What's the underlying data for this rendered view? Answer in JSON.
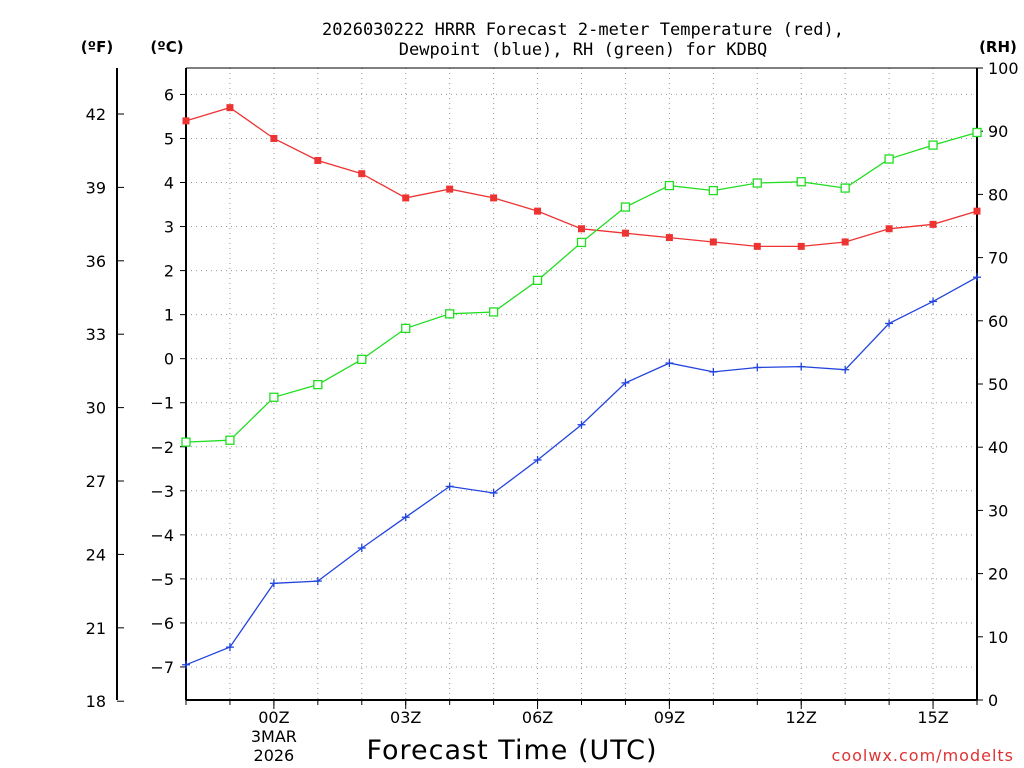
{
  "chart_data": {
    "type": "line",
    "title_line1": "2026030222 HRRR Forecast 2-meter Temperature (red),",
    "title_line2": "Dewpoint (blue), RH (green) for KDBQ",
    "xlabel": "Forecast Time (UTC)",
    "watermark": "coolwx.com/modelts",
    "units": {
      "fahrenheit": "(ºF)",
      "celsius": "(ºC)",
      "rh": "(RH)"
    },
    "x": [
      -1.0,
      -0.5,
      0.0,
      0.5,
      1.0,
      1.5,
      2.0,
      2.5,
      3.0,
      3.5,
      4.0,
      4.5,
      5.0,
      5.5,
      6.0,
      6.5,
      7.0,
      7.5,
      8.0,
      8.5,
      9.0,
      9.5,
      10.0,
      10.5,
      11.0,
      11.5,
      12.0,
      12.5,
      13.0,
      13.5,
      14.0,
      14.5,
      15.0,
      15.5,
      16.0
    ],
    "x_tick_labels": [
      {
        "x": 0,
        "label": "00Z",
        "sub1": "3MAR",
        "sub2": "2026"
      },
      {
        "x": 3,
        "label": "03Z"
      },
      {
        "x": 6,
        "label": "06Z"
      },
      {
        "x": 9,
        "label": "09Z"
      },
      {
        "x": 12,
        "label": "12Z"
      },
      {
        "x": 15,
        "label": "15Z"
      }
    ],
    "xlim": [
      -2.0,
      16.0
    ],
    "c_lim": [
      -7.75,
      6.6
    ],
    "c_ticks": [
      -7,
      -6,
      -5,
      -4,
      -3,
      -2,
      -1,
      0,
      1,
      2,
      3,
      4,
      5,
      6
    ],
    "f_ticks": [
      18,
      21,
      24,
      27,
      30,
      33,
      36,
      39,
      42
    ],
    "rh_lim": [
      0,
      100
    ],
    "rh_ticks": [
      0,
      10,
      20,
      30,
      40,
      50,
      60,
      70,
      80,
      90,
      100
    ],
    "series": [
      {
        "name": "Temperature",
        "unit": "C",
        "color": "#ee3333",
        "marker": "filled-square",
        "x": [
          -2,
          -1,
          0,
          1,
          2,
          3,
          4,
          5,
          6,
          7,
          8,
          9,
          10,
          11,
          12,
          13,
          14,
          15,
          16
        ],
        "values": [
          5.4,
          5.7,
          5.0,
          4.5,
          4.2,
          3.65,
          3.85,
          3.65,
          3.35,
          2.95,
          2.85,
          2.75,
          2.65,
          2.55,
          2.55,
          2.65,
          2.95,
          3.05,
          3.35
        ]
      },
      {
        "name": "Dewpoint",
        "unit": "C",
        "color": "#2244dd",
        "marker": "plus",
        "x": [
          -2,
          -1,
          0,
          1,
          2,
          3,
          4,
          5,
          6,
          7,
          8,
          9,
          10,
          11,
          12,
          13,
          14,
          15,
          16
        ],
        "values": [
          -6.95,
          -6.55,
          -5.1,
          -5.05,
          -4.3,
          -3.6,
          -2.9,
          -3.05,
          -2.3,
          -1.5,
          -0.55,
          -0.1,
          -0.3,
          -0.2,
          -0.18,
          -0.25,
          0.8,
          1.3,
          1.85
        ]
      },
      {
        "name": "RH",
        "unit": "%",
        "color": "#22dd22",
        "marker": "open-square",
        "x": [
          -2,
          -1,
          0,
          1,
          2,
          3,
          4,
          5,
          6,
          7,
          8,
          9,
          10,
          11,
          12,
          13,
          14,
          15,
          16
        ],
        "values": [
          40.8,
          41.1,
          47.9,
          49.9,
          53.9,
          58.8,
          61.1,
          61.4,
          66.4,
          72.4,
          78.0,
          81.4,
          80.6,
          81.8,
          82.0,
          81.0,
          85.6,
          87.8,
          89.8
        ]
      }
    ],
    "grid": true
  }
}
